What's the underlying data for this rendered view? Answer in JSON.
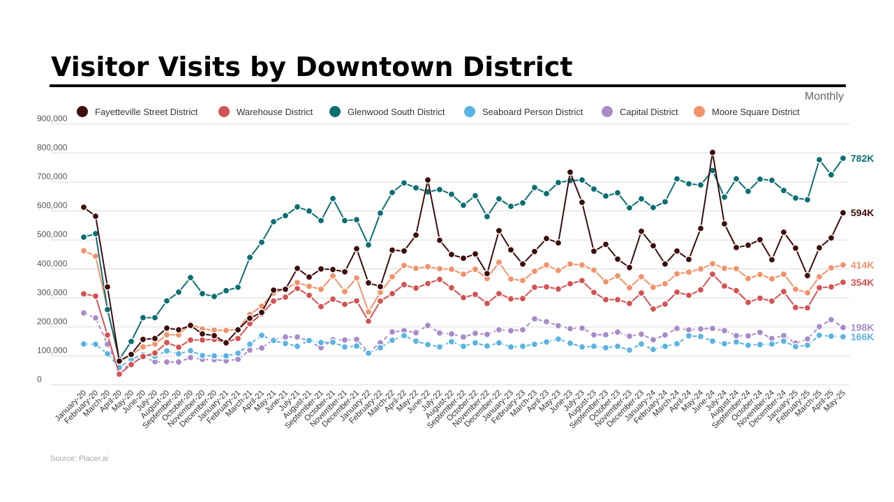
{
  "chart_data": {
    "type": "line",
    "title": "Visitor Visits by Downtown District",
    "subtitle": "Monthly",
    "source": "Source: Placer.ai",
    "ylim": [
      0,
      900000
    ],
    "yticks": [
      0,
      100000,
      200000,
      300000,
      400000,
      500000,
      600000,
      700000,
      800000,
      900000
    ],
    "ytick_labels": [
      "0",
      "100,000",
      "200,000",
      "300,000",
      "400,000",
      "500,000",
      "600,000",
      "700,000",
      "800,000",
      "900,000"
    ],
    "grid": true,
    "legend_placement": "top",
    "categories": [
      "January-20",
      "February-20",
      "March-20",
      "April-20",
      "May-20",
      "June-20",
      "July-20",
      "August-20",
      "September-20",
      "October-20",
      "November-20",
      "December-20",
      "January-21",
      "February-21",
      "March-21",
      "April-21",
      "May-21",
      "June-21",
      "July-21",
      "August-21",
      "September-21",
      "October-21",
      "November-21",
      "December-21",
      "January-22",
      "February-22",
      "March-22",
      "April-22",
      "May-22",
      "June-22",
      "July-22",
      "August-22",
      "September-22",
      "October-22",
      "November-22",
      "December-22",
      "January-23",
      "February-23",
      "March-23",
      "April-23",
      "May-23",
      "June-23",
      "July-23",
      "August-23",
      "September-23",
      "October-23",
      "November-23",
      "December-23",
      "January-24",
      "February-24",
      "March-24",
      "April-24",
      "May-24",
      "June-24",
      "July-24",
      "August-24",
      "September-24",
      "October-24",
      "November-24",
      "December-24",
      "January-25",
      "February-25",
      "March-25",
      "April-25",
      "May-25"
    ],
    "series": [
      {
        "name": "Fayetteville Street District",
        "color": "#3d0c0c",
        "dashed": false,
        "end_label": "594K",
        "values": [
          613000,
          582000,
          338000,
          82000,
          105000,
          157000,
          160000,
          196000,
          190000,
          205000,
          176000,
          170000,
          145000,
          190000,
          230000,
          250000,
          327000,
          330000,
          402000,
          372000,
          400000,
          398000,
          390000,
          470000,
          352000,
          339000,
          465000,
          462000,
          517000,
          707000,
          499000,
          450000,
          437000,
          452000,
          384000,
          532000,
          466000,
          417000,
          460000,
          505000,
          490000,
          734000,
          630000,
          461000,
          485000,
          434000,
          405000,
          530000,
          480000,
          417000,
          462000,
          433000,
          540000,
          802000,
          556000,
          474000,
          482000,
          501000,
          432000,
          527000,
          472000,
          377000,
          473000,
          507000,
          594000
        ]
      },
      {
        "name": "Warehouse District",
        "color": "#d45252",
        "dashed": false,
        "end_label": "354K",
        "values": [
          314000,
          306000,
          172000,
          37000,
          70000,
          98000,
          110000,
          146000,
          130000,
          155000,
          155000,
          157000,
          147000,
          160000,
          211000,
          245000,
          289000,
          303000,
          333000,
          309000,
          270000,
          296000,
          278000,
          290000,
          220000,
          289000,
          315000,
          346000,
          334000,
          350000,
          364000,
          335000,
          301000,
          312000,
          281000,
          315000,
          297000,
          298000,
          337000,
          338000,
          331000,
          349000,
          360000,
          319000,
          294000,
          294000,
          281000,
          317000,
          262000,
          279000,
          320000,
          309000,
          328000,
          382000,
          341000,
          325000,
          285000,
          299000,
          289000,
          322000,
          267000,
          266000,
          335000,
          338000,
          354000
        ]
      },
      {
        "name": "Glenwood South District",
        "color": "#0b6e72",
        "dashed": false,
        "end_label": "782K",
        "values": [
          510000,
          522000,
          260000,
          88000,
          150000,
          232000,
          232000,
          290000,
          320000,
          370000,
          315000,
          305000,
          325000,
          337000,
          440000,
          492000,
          563000,
          584000,
          614000,
          600000,
          567000,
          643000,
          567000,
          570000,
          483000,
          593000,
          664000,
          697000,
          680000,
          666000,
          674000,
          658000,
          620000,
          653000,
          581000,
          642000,
          616000,
          628000,
          681000,
          660000,
          698000,
          705000,
          707000,
          676000,
          652000,
          663000,
          611000,
          642000,
          612000,
          632000,
          711000,
          694000,
          690000,
          740000,
          648000,
          711000,
          668000,
          710000,
          706000,
          671000,
          645000,
          639000,
          777000,
          725000,
          782000
        ]
      },
      {
        "name": "Seaboard Person District",
        "color": "#5ab4e3",
        "dashed": true,
        "end_label": "166K",
        "values": [
          141000,
          140000,
          107000,
          60000,
          88000,
          104000,
          99000,
          117000,
          107000,
          118000,
          101000,
          100000,
          100000,
          109000,
          140000,
          171000,
          153000,
          143000,
          133000,
          153000,
          146000,
          147000,
          131000,
          134000,
          109000,
          128000,
          154000,
          170000,
          151000,
          139000,
          131000,
          149000,
          133000,
          145000,
          134000,
          145000,
          131000,
          133000,
          140000,
          148000,
          158000,
          144000,
          131000,
          133000,
          128000,
          133000,
          120000,
          141000,
          122000,
          133000,
          142000,
          169000,
          167000,
          151000,
          142000,
          148000,
          137000,
          139000,
          141000,
          151000,
          132000,
          137000,
          171000,
          168000,
          166000
        ]
      },
      {
        "name": "Capital District",
        "color": "#a88bc9",
        "dashed": true,
        "end_label": "198K",
        "values": [
          248000,
          231000,
          140000,
          50000,
          72000,
          97000,
          80000,
          79000,
          79000,
          94000,
          88000,
          87000,
          83000,
          88000,
          120000,
          127000,
          157000,
          165000,
          165000,
          151000,
          128000,
          156000,
          155000,
          157000,
          112000,
          145000,
          183000,
          187000,
          180000,
          205000,
          179000,
          176000,
          165000,
          178000,
          174000,
          190000,
          187000,
          190000,
          228000,
          218000,
          204000,
          194000,
          196000,
          173000,
          173000,
          182000,
          168000,
          175000,
          156000,
          172000,
          195000,
          190000,
          193000,
          195000,
          187000,
          170000,
          169000,
          181000,
          160000,
          170000,
          144000,
          158000,
          201000,
          225000,
          198000
        ]
      },
      {
        "name": "Moore Square District",
        "color": "#f2926a",
        "dashed": false,
        "end_label": "414K",
        "values": [
          463000,
          444000,
          262000,
          85000,
          104000,
          131000,
          141000,
          173000,
          173000,
          210000,
          193000,
          189000,
          188000,
          192000,
          243000,
          272000,
          317000,
          331000,
          353000,
          340000,
          330000,
          376000,
          322000,
          369000,
          252000,
          319000,
          373000,
          412000,
          402000,
          408000,
          401000,
          399000,
          382000,
          399000,
          367000,
          423000,
          365000,
          360000,
          392000,
          414000,
          395000,
          417000,
          414000,
          396000,
          356000,
          376000,
          335000,
          373000,
          337000,
          349000,
          383000,
          389000,
          400000,
          418000,
          402000,
          401000,
          367000,
          381000,
          366000,
          382000,
          330000,
          318000,
          373000,
          404000,
          414000
        ]
      }
    ]
  }
}
